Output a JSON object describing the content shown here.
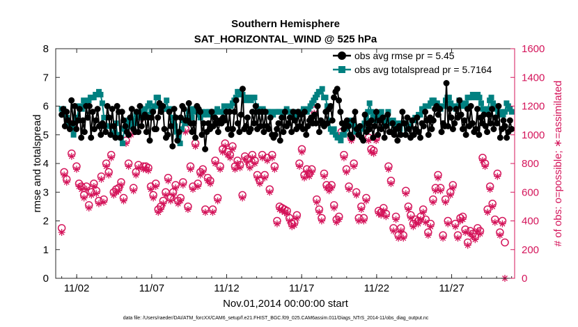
{
  "chart_data": {
    "type": "line",
    "title": "Southern Hemisphere",
    "subtitle": "SAT_HORIZONTAL_WIND @ 525 hPa",
    "xlabel": "Nov.01,2014 00:00:00 start",
    "ylabel": "rmse and totalspread",
    "y2label": "# of obs: o=possible; ∗=assimilated",
    "footer": "data file: /Users/raeder/DAI/ATM_forcXX/CAM6_setup/f.e21.FHIST_BGC.f09_025.CAM6assim.011/Diags_NTrS_2014-11/obs_diag_output.nc",
    "xlim": [
      0.6,
      31.2
    ],
    "ylim": [
      0,
      8
    ],
    "y2lim": [
      0,
      1600
    ],
    "x_ticks": [
      2,
      7,
      12,
      17,
      22,
      27
    ],
    "x_tick_labels": [
      "11/02",
      "11/07",
      "11/12",
      "11/17",
      "11/22",
      "11/27"
    ],
    "y_ticks": [
      "0",
      "1",
      "2",
      "3",
      "4",
      "5",
      "6",
      "7",
      "8"
    ],
    "y2_ticks": [
      "0",
      "200",
      "400",
      "600",
      "800",
      "1000",
      "1200",
      "1400",
      "1600"
    ],
    "legend_position": "top-right",
    "grid": false,
    "colors": {
      "rmse": "#000000",
      "spread": "#008080",
      "obs": "#d4145a"
    },
    "series": [
      {
        "name": "obs avg rmse pr = 5.45",
        "axis": "left",
        "marker": "circle",
        "values": [
          5.7,
          5.9,
          5.3,
          5.8,
          5.5,
          5.2,
          6.2,
          5.4,
          6.0,
          5.2,
          5.5,
          5.9,
          4.9,
          5.5,
          5.1,
          6.0,
          5.6,
          6.0,
          4.9,
          5.8,
          5.2,
          5.5,
          5.9,
          5.3,
          5.0,
          5.4,
          5.3,
          5.1,
          6.0,
          5.6,
          5.0,
          5.9,
          5.3,
          4.9,
          6.0,
          5.8,
          4.9,
          5.8,
          5.5,
          5.3,
          5.1,
          5.0,
          5.6,
          5.9,
          5.2,
          5.1,
          5.8,
          5.1,
          6.0,
          5.3,
          5.6,
          5.7,
          5.1,
          5.6,
          4.8,
          5.6,
          5.8,
          5.2,
          5.2,
          5.6,
          6.1,
          5.8,
          6.0,
          5.2,
          4.9,
          5.0,
          5.8,
          5.3,
          4.6,
          5.9,
          5.6,
          4.8,
          5.1,
          5.6,
          6.0,
          5.9,
          5.5,
          5.5,
          6.1,
          5.4,
          5.1,
          5.4,
          4.9,
          6.0,
          5.9,
          5.8,
          5.0,
          5.4,
          4.5,
          5.1,
          5.4,
          5.2,
          5.8,
          5.3,
          5.6,
          5.4,
          5.1,
          5.5,
          5.4,
          5.6,
          5.5,
          5.8,
          5.2,
          5.8,
          5.0,
          5.2,
          5.8,
          6.2,
          5.4,
          5.1,
          5.7,
          6.6,
          5.2,
          5.3,
          5.6,
          5.1,
          5.2,
          5.8,
          5.4,
          6.0,
          5.2,
          5.8,
          5.3,
          5.8,
          5.1,
          5.8,
          5.3,
          5.2,
          5.6,
          5.0,
          4.9,
          5.0,
          5.2,
          5.4,
          4.8,
          5.6,
          5.1,
          5.8,
          5.3,
          5.4,
          5.6,
          5.1,
          5.8,
          5.5,
          5.2,
          5.8,
          5.3,
          5.7,
          5.2,
          5.8,
          5.0,
          5.3,
          5.5,
          5.6,
          5.4,
          5.7,
          5.4,
          6.0,
          5.1,
          5.5,
          5.4,
          5.3,
          5.8,
          5.4,
          5.9,
          6.0,
          5.5,
          6.3,
          6.5,
          6.6,
          6.2,
          5.8,
          5.4,
          5.2,
          5.4,
          5.5,
          5.3,
          5.0,
          4.9,
          5.5,
          5.8,
          5.2,
          5.0,
          5.3,
          4.9,
          4.8,
          5.7,
          5.1,
          5.4,
          5.2,
          5.5,
          4.9,
          5.3,
          5.8,
          5.0,
          5.5,
          5.2,
          5.6,
          4.9,
          5.3,
          5.7,
          5.1,
          5.1,
          5.4,
          5.0,
          5.2,
          4.8,
          5.3,
          5.0,
          5.8,
          5.4,
          5.0,
          5.6,
          5.2,
          4.9,
          5.5,
          5.0,
          5.2,
          5.6,
          5.1,
          4.9,
          5.4,
          5.3,
          5.8,
          5.5,
          5.0,
          5.6,
          5.2,
          5.5,
          5.9,
          6.0,
          5.7,
          5.9,
          5.1,
          5.4,
          5.3,
          6.8,
          5.3,
          5.9,
          5.6,
          5.2,
          5.4,
          5.9,
          5.6,
          6.2,
          5.7,
          5.2,
          5.5,
          5.0,
          5.9,
          5.3,
          6.0,
          5.4,
          5.1,
          5.2,
          5.9,
          5.0,
          5.6,
          5.4,
          5.7,
          5.3,
          5.1,
          5.7,
          5.4,
          5.9,
          5.2,
          5.6,
          5.4,
          6.0,
          4.9,
          5.2,
          5.5,
          5.3,
          4.9,
          5.1,
          5.5,
          5.2
        ]
      },
      {
        "name": "obs avg totalspread pr = 5.7164",
        "axis": "left",
        "marker": "square",
        "values": [
          5.9,
          5.9,
          5.8,
          5.6,
          5.4,
          5.3,
          5.2,
          5.0,
          5.6,
          5.5,
          6.0,
          6.0,
          5.9,
          6.2,
          6.1,
          6.1,
          6.2,
          6.3,
          6.3,
          6.3,
          6.4,
          6.4,
          6.5,
          6.4,
          6.1,
          5.6,
          5.6,
          5.3,
          5.3,
          5.3,
          5.0,
          5.3,
          5.4,
          5.0,
          5.0,
          4.9,
          4.7,
          5.2,
          5.5,
          5.3,
          5.5,
          5.3,
          5.5,
          5.4,
          5.7,
          5.7,
          5.6,
          5.8,
          5.6,
          5.9,
          5.7,
          6.0,
          6.1,
          5.8,
          5.9,
          6.0,
          6.3,
          6.3,
          6.0,
          5.9,
          5.9,
          5.9,
          6.2,
          5.9,
          5.9,
          5.6,
          5.4,
          5.3,
          5.1,
          4.9,
          4.7,
          5.2,
          5.5,
          5.4,
          5.6,
          5.8,
          5.9,
          5.6,
          5.8,
          5.9,
          5.9,
          5.7,
          5.6,
          5.8,
          5.7,
          5.8,
          5.7,
          5.8,
          5.8,
          5.7,
          5.8,
          5.8,
          5.9,
          5.8,
          5.8,
          5.8,
          6.0,
          6.0,
          6.0,
          6.0,
          6.0,
          6.1,
          6.2,
          6.3,
          6.5,
          6.5,
          6.4,
          6.4,
          6.3,
          6.2,
          6.3,
          6.3,
          6.2,
          6.3,
          6.3,
          6.0,
          5.9,
          5.8,
          5.8,
          5.9,
          5.8,
          5.8,
          5.8,
          5.8,
          5.8,
          5.7,
          5.8,
          5.8,
          5.8,
          5.8,
          5.8,
          5.7,
          5.8,
          5.9,
          5.8,
          5.8,
          5.7,
          5.8,
          5.6,
          5.7,
          5.7,
          5.8,
          5.8,
          5.9,
          5.8,
          5.8,
          5.9,
          6.0,
          6.1,
          6.2,
          6.3,
          6.4,
          6.5,
          6.5,
          6.6,
          6.3,
          6.3,
          6.0,
          5.5,
          5.2,
          5.1,
          5.2,
          5.0,
          4.9,
          4.9,
          4.8,
          5.0,
          5.0,
          5.2,
          5.4,
          5.4,
          5.5,
          5.4,
          5.3,
          5.1,
          5.1,
          5.0,
          5.2,
          5.3,
          5.4,
          5.6,
          5.8,
          6.1,
          5.8,
          5.6,
          5.7,
          5.5,
          5.7,
          5.6,
          5.8,
          5.6,
          5.3,
          5.5,
          5.8,
          5.5,
          5.4,
          5.5,
          5.3,
          5.4,
          5.4,
          5.2,
          5.4,
          5.4,
          5.4,
          5.2,
          5.2,
          5.3,
          5.5,
          5.5,
          5.6,
          5.6,
          5.7,
          5.7,
          5.9,
          5.9,
          6.0,
          6.0,
          6.0,
          6.1,
          6.2,
          6.2,
          6.1,
          6.1,
          6.0,
          5.9,
          6.0,
          6.0,
          6.2,
          6.3,
          6.3,
          6.1,
          6.0,
          6.0,
          5.9,
          6.0,
          6.2,
          6.1,
          6.0,
          6.0,
          6.1,
          6.3,
          6.3,
          6.3,
          6.4,
          6.4,
          6.3,
          6.4,
          6.3,
          6.1,
          5.9,
          5.8,
          5.8,
          5.9,
          6.2,
          6.3,
          6.1,
          6.0,
          5.9,
          5.8,
          5.7,
          5.8,
          5.7,
          5.8,
          6.1,
          6.0,
          5.9,
          5.8
        ]
      },
      {
        "name": "possible",
        "axis": "right",
        "marker": "circle-open",
        "values": [
          350,
          740,
          690,
          1080,
          870,
          1060,
          780,
          660,
          640,
          580,
          640,
          510,
          600,
          660,
          610,
          540,
          710,
          550,
          800,
          740,
          860,
          600,
          620,
          630,
          670,
          560,
          960,
          800,
          1020,
          630,
          740,
          790,
          1130,
          780,
          780,
          770,
          640,
          580,
          660,
          480,
          500,
          540,
          600,
          700,
          560,
          600,
          650,
          540,
          560,
          670,
          1040,
          500,
          780,
          640,
          940,
          660,
          740,
          760,
          480,
          700,
          680,
          480,
          820,
          560,
          780,
          900,
          940,
          880,
          860,
          920,
          780,
          820,
          790,
          580,
          850,
          830,
          790,
          860,
          820,
          720,
          680,
          860,
          720,
          840,
          620,
          860,
          780,
          400,
          500,
          490,
          480,
          470,
          420,
          380,
          390,
          440,
          800,
          900,
          720,
          760,
          730,
          760,
          1170,
          550,
          480,
          420,
          730,
          650,
          630,
          650,
          510,
          410,
          430,
          1020,
          860,
          760,
          640,
          980,
          800,
          600,
          420,
          500,
          420,
          560,
          980,
          900,
          890,
          980,
          470,
          460,
          490,
          450,
          780,
          680,
          350,
          430,
          300,
          350,
          300,
          610,
          500,
          440,
          380,
          410,
          400,
          430,
          480,
          410,
          320,
          380,
          550,
          630,
          720,
          630,
          300,
          550,
          400,
          600,
          650,
          380,
          300,
          420,
          430,
          340,
          250,
          330,
          310,
          290,
          350,
          330,
          840,
          800,
          480,
          640,
          520,
          410,
          730,
          320,
          400,
          250
        ]
      },
      {
        "name": "assimilated",
        "axis": "right",
        "marker": "asterisk",
        "values": [
          320,
          720,
          670,
          1060,
          850,
          1040,
          760,
          640,
          620,
          560,
          620,
          490,
          580,
          640,
          590,
          520,
          690,
          530,
          780,
          720,
          840,
          580,
          600,
          610,
          650,
          540,
          940,
          780,
          1000,
          610,
          720,
          770,
          1110,
          760,
          760,
          750,
          620,
          560,
          640,
          460,
          480,
          520,
          580,
          680,
          540,
          580,
          630,
          520,
          540,
          650,
          1020,
          480,
          760,
          620,
          920,
          640,
          720,
          740,
          460,
          680,
          660,
          460,
          800,
          540,
          760,
          880,
          920,
          860,
          840,
          900,
          760,
          800,
          770,
          560,
          830,
          810,
          770,
          840,
          800,
          700,
          660,
          840,
          700,
          820,
          600,
          840,
          760,
          380,
          480,
          470,
          460,
          450,
          400,
          360,
          370,
          420,
          780,
          880,
          700,
          740,
          710,
          740,
          1150,
          530,
          460,
          400,
          710,
          630,
          610,
          630,
          490,
          390,
          410,
          1000,
          840,
          740,
          620,
          960,
          780,
          580,
          400,
          480,
          400,
          540,
          960,
          880,
          870,
          960,
          450,
          440,
          470,
          430,
          760,
          660,
          330,
          410,
          280,
          330,
          280,
          590,
          480,
          420,
          360,
          390,
          380,
          410,
          460,
          390,
          300,
          360,
          530,
          610,
          700,
          610,
          280,
          530,
          380,
          580,
          630,
          360,
          280,
          400,
          410,
          320,
          230,
          310,
          290,
          270,
          330,
          310,
          820,
          780,
          460,
          620,
          500,
          390,
          710,
          300,
          380,
          0
        ]
      }
    ]
  }
}
